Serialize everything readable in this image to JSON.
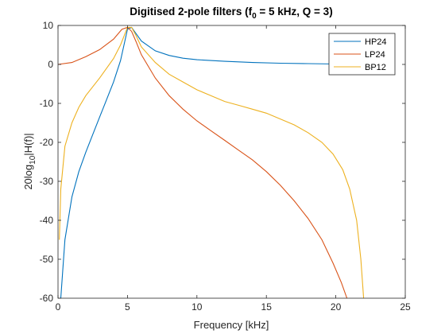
{
  "chart_data": {
    "type": "line",
    "title": {
      "prefix": "Digitised 2-pole filters (f",
      "subscript": "0",
      "suffix": " = 5 kHz, Q = 3)"
    },
    "xlabel": "Frequency [kHz]",
    "ylabel": {
      "prefix": "20log",
      "subscript": "10",
      "suffix": "|H(f)|"
    },
    "xlim": [
      0,
      25
    ],
    "ylim": [
      -60,
      10
    ],
    "xticks": [
      0,
      5,
      10,
      15,
      20,
      25
    ],
    "yticks": [
      10,
      0,
      -10,
      -20,
      -30,
      -40,
      -50,
      -60
    ],
    "grid": false,
    "legend_position": "top-right",
    "series": [
      {
        "name": "HP24",
        "color": "#0072BD",
        "points": [
          [
            0.2,
            -60
          ],
          [
            0.5,
            -45
          ],
          [
            1,
            -34
          ],
          [
            1.5,
            -27.5
          ],
          [
            2,
            -22.5
          ],
          [
            2.5,
            -18
          ],
          [
            3,
            -13.5
          ],
          [
            3.5,
            -9
          ],
          [
            4,
            -4.5
          ],
          [
            4.5,
            1
          ],
          [
            5,
            9
          ],
          [
            5.3,
            9.5
          ],
          [
            5.6,
            8
          ],
          [
            6,
            6
          ],
          [
            7,
            3.5
          ],
          [
            8,
            2.3
          ],
          [
            9,
            1.6
          ],
          [
            10,
            1.2
          ],
          [
            12,
            0.8
          ],
          [
            14,
            0.5
          ],
          [
            16,
            0.3
          ],
          [
            18,
            0.2
          ],
          [
            20,
            0.1
          ],
          [
            22,
            0.05
          ]
        ]
      },
      {
        "name": "LP24",
        "color": "#D95319",
        "points": [
          [
            0,
            0
          ],
          [
            1,
            0.5
          ],
          [
            2,
            2
          ],
          [
            3,
            3.8
          ],
          [
            4,
            6.5
          ],
          [
            4.6,
            9
          ],
          [
            5,
            9.5
          ],
          [
            5.3,
            8.5
          ],
          [
            5.6,
            6
          ],
          [
            6,
            2.5
          ],
          [
            7,
            -3.5
          ],
          [
            8,
            -8
          ],
          [
            9,
            -11.5
          ],
          [
            10,
            -14.5
          ],
          [
            11,
            -17
          ],
          [
            12,
            -19.5
          ],
          [
            13,
            -22
          ],
          [
            14,
            -24.5
          ],
          [
            15,
            -27.5
          ],
          [
            16,
            -31
          ],
          [
            17,
            -35
          ],
          [
            18,
            -39.5
          ],
          [
            19,
            -45
          ],
          [
            19.8,
            -51
          ],
          [
            20.4,
            -56
          ],
          [
            20.8,
            -60
          ]
        ]
      },
      {
        "name": "BP12",
        "color": "#EDB120",
        "points": [
          [
            0.1,
            -45
          ],
          [
            0.2,
            -32
          ],
          [
            0.5,
            -21
          ],
          [
            1,
            -15
          ],
          [
            1.5,
            -11
          ],
          [
            2,
            -8
          ],
          [
            3,
            -3.5
          ],
          [
            4,
            1.5
          ],
          [
            4.5,
            5
          ],
          [
            5,
            9.5
          ],
          [
            5.3,
            9.5
          ],
          [
            5.6,
            7.5
          ],
          [
            6,
            4.5
          ],
          [
            7,
            0.5
          ],
          [
            8,
            -2.5
          ],
          [
            9,
            -4.5
          ],
          [
            10,
            -6.5
          ],
          [
            11,
            -8
          ],
          [
            12,
            -9.5
          ],
          [
            13,
            -10.5
          ],
          [
            14,
            -11.5
          ],
          [
            15,
            -12.5
          ],
          [
            16,
            -14
          ],
          [
            17,
            -15.5
          ],
          [
            18,
            -17.5
          ],
          [
            19,
            -20
          ],
          [
            19.8,
            -23
          ],
          [
            20.5,
            -27
          ],
          [
            21,
            -32
          ],
          [
            21.5,
            -40
          ],
          [
            21.8,
            -50
          ],
          [
            22,
            -60
          ]
        ]
      }
    ]
  }
}
